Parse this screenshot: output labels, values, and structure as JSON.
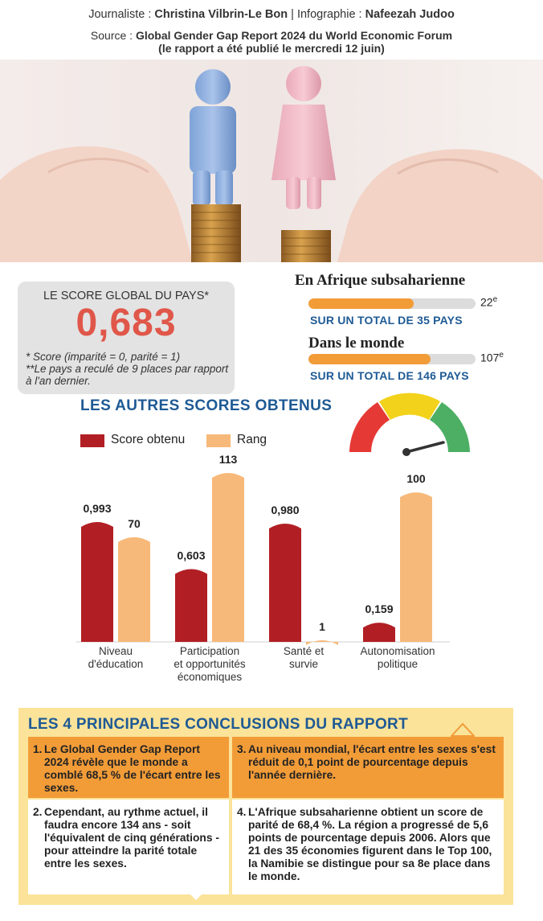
{
  "header": {
    "journalist_label": "Journaliste :",
    "journalist_name": "Christina Vilbrin-Le Bon",
    "separator": "|",
    "infographic_label": "Infographie :",
    "infographic_name": "Nafeezah Judoo",
    "source_label": "Source :",
    "source_name": "Global Gender Gap Report 2024 du World Economic Forum",
    "source_note": "(le rapport a été publié le mercredi 12 juin)"
  },
  "score": {
    "label": "LE SCORE GLOBAL DU PAYS*",
    "value": "0,683",
    "note1": "* Score (imparité = 0, parité = 1)",
    "note2": "**Le pays a reculé de 9 places par rapport à l'an dernier."
  },
  "ranks": [
    {
      "title": "En Afrique subsaharienne",
      "rank": 22,
      "rank_text": "22",
      "suffix": "e",
      "total": 35,
      "total_text": "SUR UN TOTAL DE 35 PAYS"
    },
    {
      "title": "Dans le monde",
      "rank": 107,
      "rank_text": "107",
      "suffix": "e",
      "total": 146,
      "total_text": "SUR UN TOTAL DE 146 PAYS"
    }
  ],
  "gauge": {
    "colors": [
      "#e53935",
      "#f2d21b",
      "#4caf63"
    ],
    "needle": "#333333"
  },
  "colors": {
    "score": "#b11f24",
    "rank": "#f7b979",
    "accent_blue": "#1e5a94",
    "orange": "#f29c38",
    "yellow_box": "#fbe39a"
  },
  "chart_data": {
    "type": "bar",
    "title": "LES AUTRES SCORES OBTENUS",
    "categories": [
      "Niveau d'éducation",
      "Participation et opportunités économiques",
      "Santé et survie",
      "Autonomisation politique"
    ],
    "category_lines": [
      [
        "Niveau",
        "d'éducation"
      ],
      [
        "Participation",
        "et opportunités",
        "économiques"
      ],
      [
        "Santé et",
        "survie"
      ],
      [
        "Autonomisation",
        "politique"
      ]
    ],
    "series": [
      {
        "name": "Score obtenu",
        "values": [
          0.993,
          0.603,
          0.98,
          0.159
        ],
        "labels": [
          "0,993",
          "0,603",
          "0,980",
          "0,159"
        ]
      },
      {
        "name": "Rang",
        "values": [
          70,
          113,
          1,
          100
        ],
        "labels": [
          "70",
          "113",
          "1",
          "100"
        ]
      }
    ],
    "legend": "top-left",
    "grid": false
  },
  "conclusions": {
    "title": "LES 4 PRINCIPALES CONCLUSIONS DU RAPPORT",
    "items": [
      {
        "num": "1.",
        "text": "Le Global Gender Gap Report 2024 révèle que le monde a comblé 68,5 % de l'écart entre les sexes."
      },
      {
        "num": "3.",
        "text": "Au niveau mondial, l'écart entre les sexes s'est réduit de 0,1 point de pourcentage depuis l'année dernière."
      },
      {
        "num": "2.",
        "text": "Cependant, au rythme actuel, il faudra encore 134 ans - soit l'équivalent de cinq générations - pour atteindre la parité totale entre les sexes."
      },
      {
        "num": "4.",
        "text": "L'Afrique subsaharienne obtient un score de parité de 68,4 %. La région a progressé de 5,6 points de pourcentage depuis 2006. Alors que 21 des 35 économies figurent dans le Top 100, la Namibie se distingue pour sa 8e place dans le monde."
      }
    ]
  }
}
